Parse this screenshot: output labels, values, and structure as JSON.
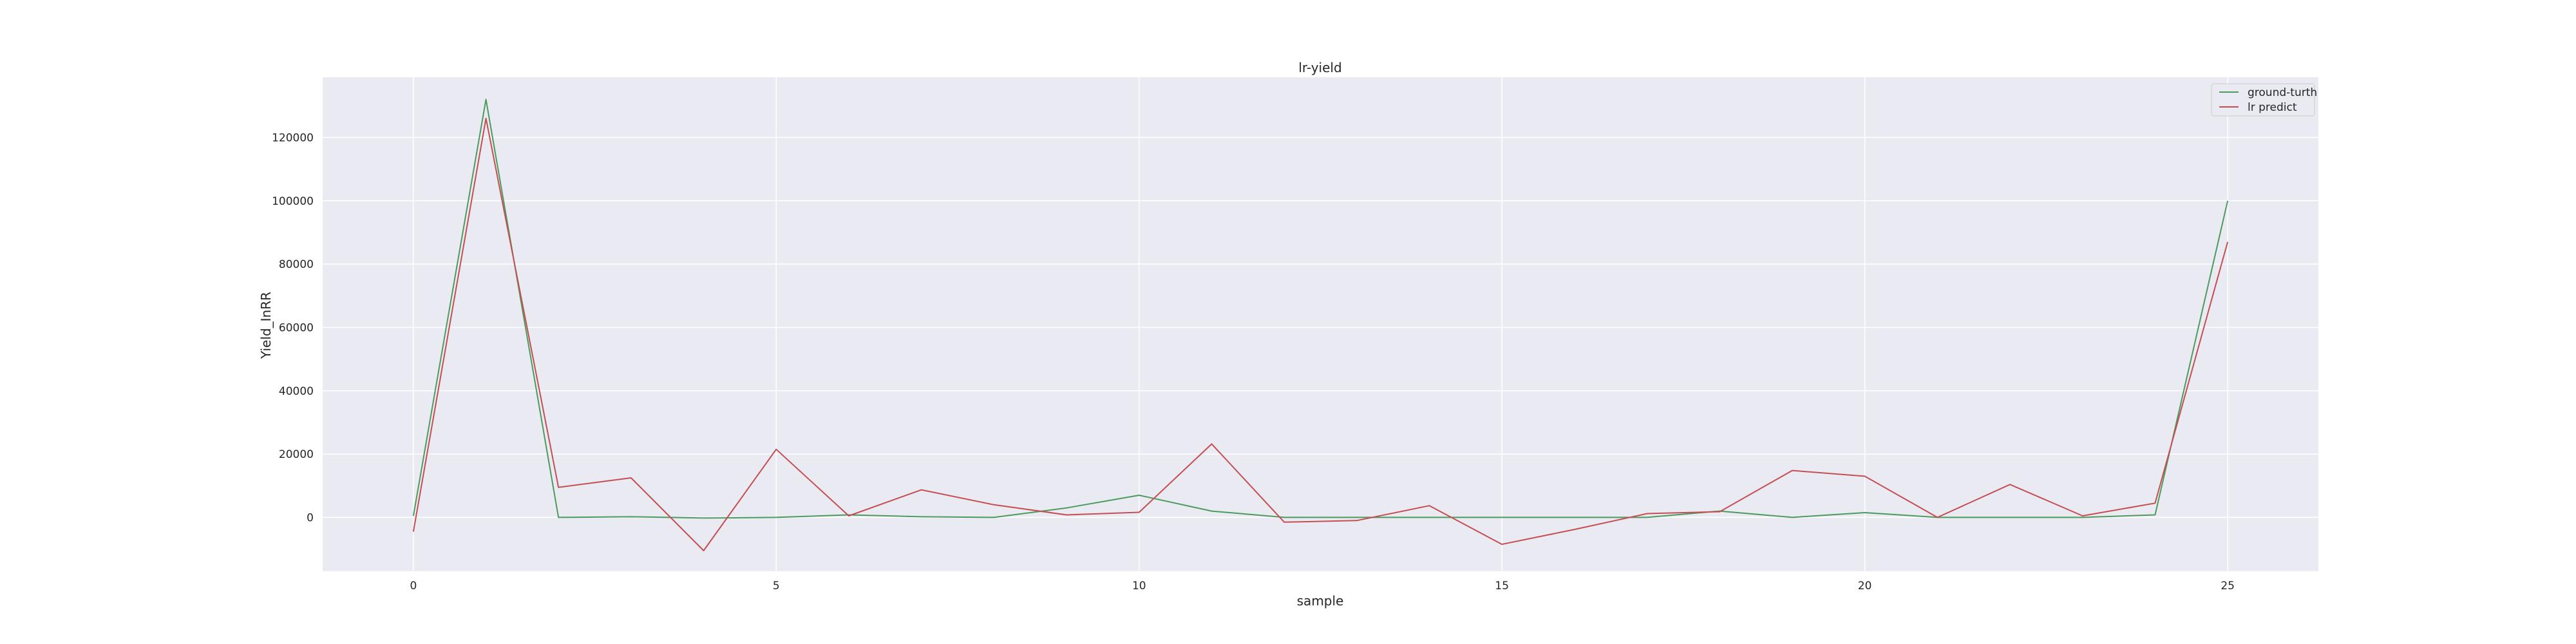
{
  "chart_data": {
    "type": "line",
    "title": "lr-yield",
    "xlabel": "sample",
    "ylabel": "Yield_InRR",
    "xlim": [
      -1.25,
      26.25
    ],
    "ylim": [
      -17000,
      139000
    ],
    "xticks": [
      0,
      5,
      10,
      15,
      20,
      25
    ],
    "yticks": [
      0,
      20000,
      40000,
      60000,
      80000,
      100000,
      120000
    ],
    "grid": true,
    "legend_position": "top-right",
    "x": [
      0,
      1,
      2,
      3,
      4,
      5,
      6,
      7,
      8,
      9,
      10,
      11,
      12,
      13,
      14,
      15,
      16,
      17,
      18,
      19,
      20,
      21,
      22,
      23,
      24,
      25
    ],
    "series": [
      {
        "name": "ground-turth",
        "color": "#4c9a5e",
        "values": [
          500,
          132000,
          0,
          200,
          -200,
          0,
          800,
          200,
          0,
          3000,
          7000,
          2000,
          0,
          0,
          0,
          0,
          0,
          0,
          2000,
          0,
          1500,
          0,
          0,
          0,
          800,
          100000
        ]
      },
      {
        "name": "lr predict",
        "color": "#c44e52",
        "values": [
          -4500,
          126000,
          9500,
          12500,
          -10500,
          21500,
          500,
          8700,
          4000,
          800,
          1600,
          23200,
          -1500,
          -1000,
          3700,
          -8500,
          -3800,
          1200,
          1800,
          14800,
          13000,
          0,
          10400,
          500,
          4500,
          87000
        ]
      }
    ]
  }
}
